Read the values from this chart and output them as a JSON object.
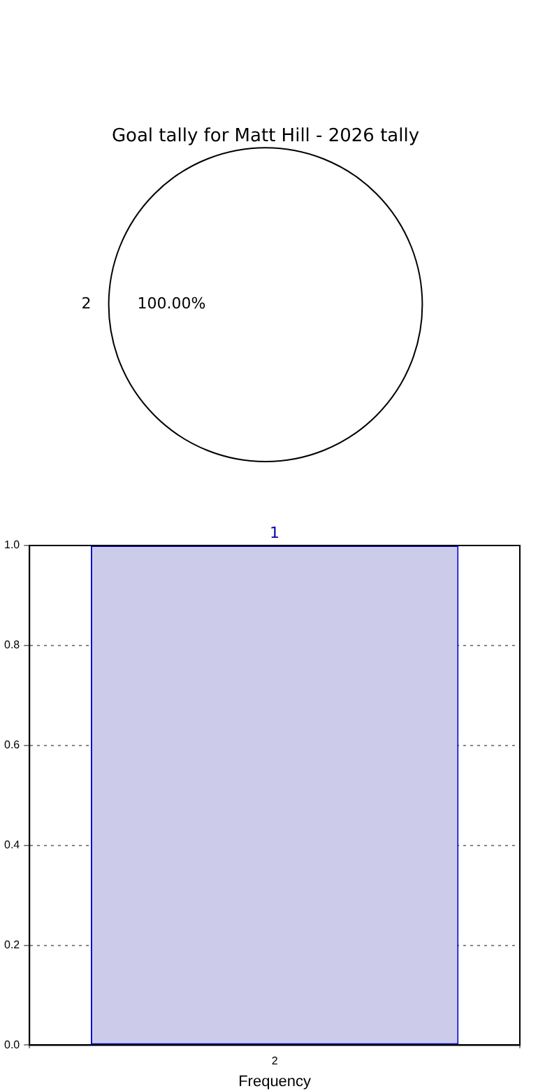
{
  "chart_data": [
    {
      "type": "pie",
      "title": "Goal tally for Matt Hill - 2026 tally",
      "categories": [
        "2"
      ],
      "values": [
        100
      ],
      "colors": [
        "#ffffff"
      ],
      "value_labels": [
        "100.00%"
      ]
    },
    {
      "type": "bar",
      "categories": [
        "2"
      ],
      "values": [
        1
      ],
      "color": "#ccccea",
      "xlabel": "Frequency",
      "ylim": [
        0,
        1
      ],
      "yticks": [
        {
          "value": 0,
          "label": "0.0"
        },
        {
          "value": 0.2,
          "label": "0.2"
        },
        {
          "value": 0.4,
          "label": "0.4"
        },
        {
          "value": 0.6,
          "label": "0.6"
        },
        {
          "value": 0.8,
          "label": "0.8"
        },
        {
          "value": 1,
          "label": "1.0"
        }
      ],
      "grid": true,
      "data_labels": true
    }
  ]
}
